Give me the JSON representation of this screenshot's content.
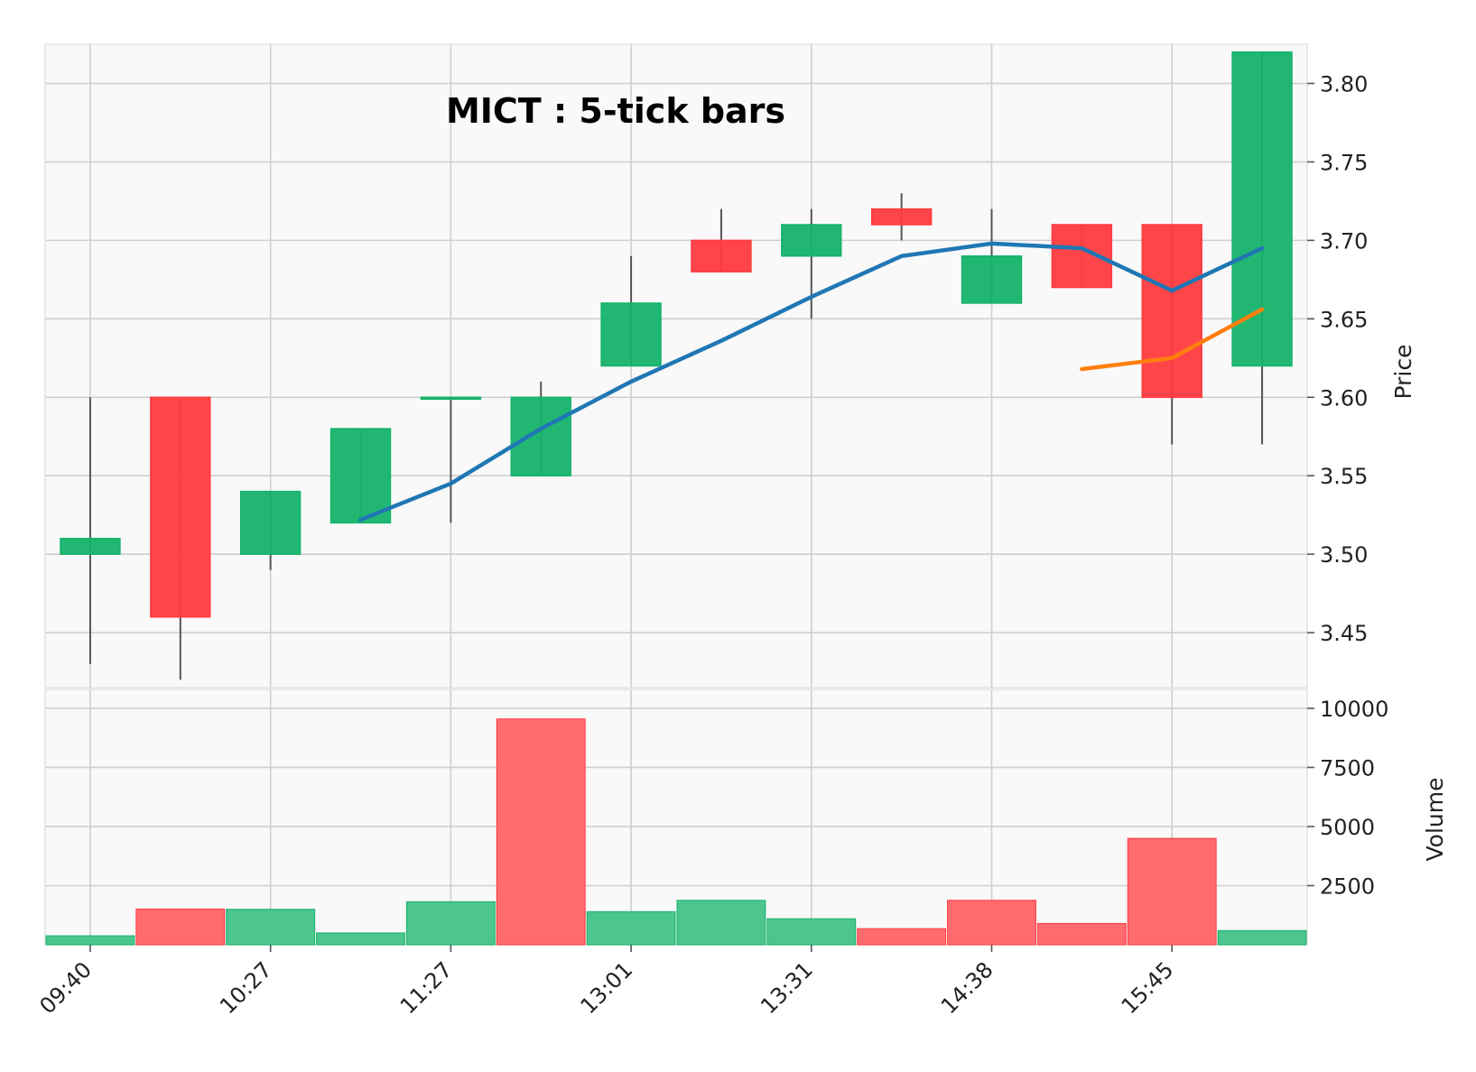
{
  "chart_data": {
    "type": "candlestick",
    "title": "MICT : 5-tick bars",
    "x_tick_labels": [
      "09:40",
      "10:27",
      "11:27",
      "13:01",
      "13:31",
      "14:38",
      "15:45"
    ],
    "x_tick_indices": [
      0,
      2,
      4,
      6,
      8,
      10,
      12
    ],
    "price_panel": {
      "ylabel": "Price",
      "ylim": [
        3.415,
        3.825
      ],
      "yticks": [
        3.45,
        3.5,
        3.55,
        3.6,
        3.65,
        3.7,
        3.75,
        3.8
      ],
      "ytick_labels": [
        "3.45",
        "3.50",
        "3.55",
        "3.60",
        "3.65",
        "3.70",
        "3.75",
        "3.80"
      ]
    },
    "volume_panel": {
      "ylabel": "Volume",
      "ylim": [
        0,
        10800
      ],
      "yticks": [
        2500,
        5000,
        7500,
        10000
      ],
      "ytick_labels": [
        "2500",
        "5000",
        "7500",
        "10000"
      ]
    },
    "ohlcv": [
      {
        "open": 3.5,
        "high": 3.6,
        "low": 3.43,
        "close": 3.51,
        "volume": 380
      },
      {
        "open": 3.6,
        "high": 3.6,
        "low": 3.42,
        "close": 3.46,
        "volume": 1510
      },
      {
        "open": 3.5,
        "high": 3.54,
        "low": 3.49,
        "close": 3.54,
        "volume": 1500
      },
      {
        "open": 3.52,
        "high": 3.58,
        "low": 3.52,
        "close": 3.58,
        "volume": 500
      },
      {
        "open": 3.6,
        "high": 3.6,
        "low": 3.52,
        "close": 3.6,
        "volume": 1820
      },
      {
        "open": 3.55,
        "high": 3.61,
        "low": 3.55,
        "close": 3.6,
        "volume": 9550
      },
      {
        "open": 3.62,
        "high": 3.69,
        "low": 3.62,
        "close": 3.66,
        "volume": 1400
      },
      {
        "open": 3.7,
        "high": 3.72,
        "low": 3.68,
        "close": 3.68,
        "volume": 1880
      },
      {
        "open": 3.69,
        "high": 3.72,
        "low": 3.65,
        "close": 3.71,
        "volume": 1100
      },
      {
        "open": 3.72,
        "high": 3.73,
        "low": 3.7,
        "close": 3.71,
        "volume": 680
      },
      {
        "open": 3.66,
        "high": 3.72,
        "low": 3.66,
        "close": 3.69,
        "volume": 1880
      },
      {
        "open": 3.71,
        "high": 3.71,
        "low": 3.67,
        "close": 3.67,
        "volume": 900
      },
      {
        "open": 3.71,
        "high": 3.71,
        "low": 3.57,
        "close": 3.6,
        "volume": 4500
      },
      {
        "open": 3.62,
        "high": 3.82,
        "low": 3.57,
        "close": 3.82,
        "volume": 600
      }
    ],
    "volume_up": [
      true,
      false,
      true,
      true,
      true,
      false,
      true,
      true,
      true,
      false,
      false,
      false,
      false,
      true
    ],
    "moving_averages": [
      {
        "color": "#1f77b4",
        "values": [
          null,
          null,
          null,
          3.522,
          3.545,
          3.58,
          3.61,
          3.636,
          3.664,
          3.69,
          3.698,
          3.695,
          3.668,
          3.695
        ]
      },
      {
        "color": "#ff7f0e",
        "values": [
          null,
          null,
          null,
          null,
          null,
          null,
          null,
          null,
          null,
          null,
          null,
          3.618,
          3.625,
          3.656
        ]
      }
    ],
    "colors": {
      "up": "#15b36a",
      "down": "#ff3b3f",
      "volume_up": "#4cc58e",
      "volume_down": "#ff6b6e",
      "wick": "#555555",
      "background": "#f9f9f9",
      "grid": "#cfcfcf"
    },
    "grid": true
  }
}
